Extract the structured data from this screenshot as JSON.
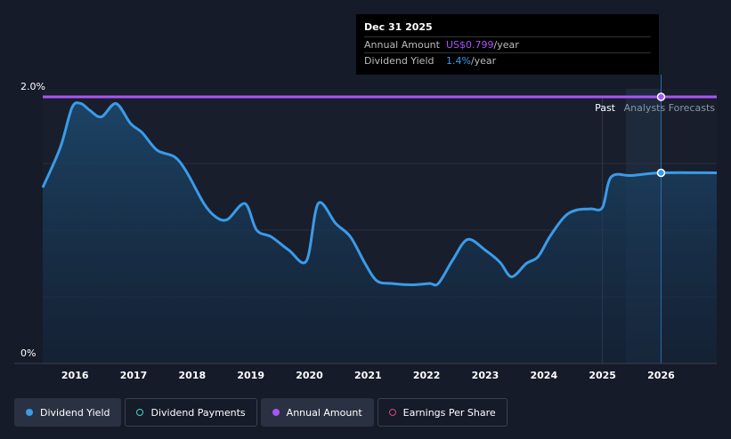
{
  "tooltip": {
    "date": "Dec 31 2025",
    "rows": [
      {
        "label": "Annual Amount",
        "value": "US$0.799",
        "unit": "/year",
        "color": "#a855f7"
      },
      {
        "label": "Dividend Yield",
        "value": "1.4%",
        "unit": "/year",
        "color": "#3b9be8"
      }
    ]
  },
  "regions": {
    "past_label": "Past",
    "forecast_label": "Analysts Forecasts"
  },
  "legend": [
    {
      "label": "Dividend Yield",
      "color": "#3b9be8",
      "style": "filled",
      "active": true
    },
    {
      "label": "Dividend Payments",
      "color": "#4fd1c5",
      "style": "hollow",
      "active": false
    },
    {
      "label": "Annual Amount",
      "color": "#a855f7",
      "style": "filled",
      "active": true
    },
    {
      "label": "Earnings Per Share",
      "color": "#d9467a",
      "style": "hollow",
      "active": false
    }
  ],
  "chart_data": {
    "type": "line",
    "y_tick_labels": [
      "2.0%",
      "0%"
    ],
    "ylim": [
      0,
      2.0
    ],
    "xlim": [
      2015.45,
      2026.95
    ],
    "x_ticks": [
      2016,
      2017,
      2018,
      2019,
      2020,
      2021,
      2022,
      2023,
      2024,
      2025,
      2026
    ],
    "forecast_start": 2025.4,
    "past_divider": 2025.0,
    "cursor_x": 2026.0,
    "grid": true,
    "series": [
      {
        "name": "Dividend Yield",
        "color": "#3b9be8",
        "points": [
          [
            2015.45,
            1.32
          ],
          [
            2015.75,
            1.62
          ],
          [
            2015.95,
            1.92
          ],
          [
            2016.1,
            1.95
          ],
          [
            2016.25,
            1.9
          ],
          [
            2016.45,
            1.85
          ],
          [
            2016.7,
            1.95
          ],
          [
            2016.95,
            1.8
          ],
          [
            2017.15,
            1.73
          ],
          [
            2017.4,
            1.6
          ],
          [
            2017.7,
            1.55
          ],
          [
            2017.9,
            1.44
          ],
          [
            2018.2,
            1.2
          ],
          [
            2018.4,
            1.1
          ],
          [
            2018.6,
            1.08
          ],
          [
            2018.9,
            1.2
          ],
          [
            2019.1,
            1.0
          ],
          [
            2019.35,
            0.95
          ],
          [
            2019.65,
            0.85
          ],
          [
            2019.95,
            0.77
          ],
          [
            2020.15,
            1.2
          ],
          [
            2020.45,
            1.05
          ],
          [
            2020.7,
            0.95
          ],
          [
            2020.95,
            0.75
          ],
          [
            2021.15,
            0.62
          ],
          [
            2021.4,
            0.6
          ],
          [
            2021.75,
            0.59
          ],
          [
            2022.05,
            0.6
          ],
          [
            2022.2,
            0.6
          ],
          [
            2022.45,
            0.78
          ],
          [
            2022.7,
            0.93
          ],
          [
            2023.0,
            0.85
          ],
          [
            2023.25,
            0.76
          ],
          [
            2023.45,
            0.65
          ],
          [
            2023.7,
            0.75
          ],
          [
            2023.9,
            0.8
          ],
          [
            2024.1,
            0.95
          ],
          [
            2024.35,
            1.1
          ],
          [
            2024.55,
            1.15
          ],
          [
            2024.8,
            1.16
          ],
          [
            2025.0,
            1.17
          ],
          [
            2025.15,
            1.4
          ],
          [
            2025.5,
            1.41
          ],
          [
            2026.0,
            1.43
          ],
          [
            2026.95,
            1.43
          ]
        ]
      },
      {
        "name": "Annual Amount",
        "color": "#a855f7",
        "points": [
          [
            2015.45,
            2.0
          ],
          [
            2026.95,
            2.0
          ]
        ]
      }
    ]
  }
}
